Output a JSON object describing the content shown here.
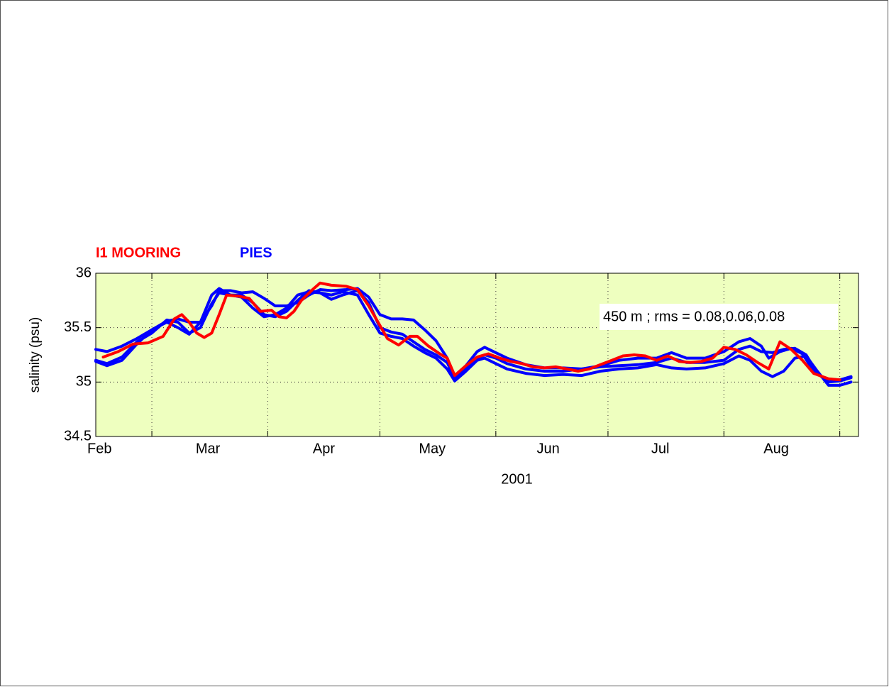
{
  "chart_data": {
    "type": "line",
    "xlabel": "2001",
    "ylabel": "salinity  (psu)",
    "annotation": "450 m ; rms = 0.08,0.06,0.08",
    "legend": [
      {
        "name": "I1 MOORING",
        "color": "#ff0000"
      },
      {
        "name": "PIES",
        "color": "#0000ff"
      }
    ],
    "xlim": [
      45,
      249
    ],
    "ylim": [
      34.5,
      36
    ],
    "xticks": [
      {
        "value": 46,
        "label": "Feb"
      },
      {
        "value": 75,
        "label": "Mar"
      },
      {
        "value": 106,
        "label": "Apr"
      },
      {
        "value": 135,
        "label": "May"
      },
      {
        "value": 166,
        "label": "Jun"
      },
      {
        "value": 196,
        "label": "Jul"
      },
      {
        "value": 227,
        "label": "Aug"
      }
    ],
    "xgrid": [
      60,
      91,
      121,
      152,
      182,
      213,
      244
    ],
    "yticks": [
      34.5,
      35,
      35.5,
      36
    ],
    "grid": true,
    "background": "#eeffbf",
    "series": [
      {
        "color": "#0000ff",
        "x": [
          45,
          48,
          52,
          56,
          60,
          64,
          67,
          70,
          73,
          76,
          78,
          81,
          84,
          87,
          90,
          93,
          96,
          99,
          102,
          105,
          108,
          112,
          115,
          118,
          121,
          124,
          127,
          130,
          133,
          136,
          139,
          141,
          144,
          147,
          149,
          152,
          155,
          160,
          165,
          170,
          175,
          180,
          185,
          190,
          195,
          199,
          203,
          208,
          213,
          217,
          220,
          223,
          225,
          228,
          231,
          234,
          237,
          240,
          244,
          247
        ],
        "values": [
          35.3,
          35.28,
          35.33,
          35.4,
          35.48,
          35.56,
          35.58,
          35.55,
          35.55,
          35.7,
          35.84,
          35.84,
          35.82,
          35.83,
          35.77,
          35.7,
          35.7,
          35.73,
          35.8,
          35.85,
          35.84,
          35.85,
          35.86,
          35.78,
          35.62,
          35.58,
          35.58,
          35.57,
          35.48,
          35.38,
          35.22,
          35.05,
          35.15,
          35.28,
          35.32,
          35.27,
          35.22,
          35.16,
          35.13,
          35.13,
          35.12,
          35.15,
          35.2,
          35.22,
          35.22,
          35.27,
          35.22,
          35.22,
          35.28,
          35.37,
          35.4,
          35.33,
          35.22,
          35.28,
          35.31,
          35.26,
          35.1,
          35.03,
          35.02,
          35.05
        ]
      },
      {
        "color": "#0000ff",
        "x": [
          45,
          48,
          52,
          56,
          60,
          64,
          67,
          70,
          73,
          76,
          78,
          81,
          84,
          87,
          90,
          93,
          96,
          99,
          102,
          105,
          108,
          111,
          115,
          118,
          121,
          124,
          127,
          130,
          133,
          136,
          139,
          141,
          144,
          147,
          149,
          152,
          155,
          160,
          165,
          170,
          175,
          180,
          185,
          190,
          195,
          199,
          203,
          208,
          213,
          217,
          220,
          223,
          226,
          229,
          232,
          235,
          238,
          241,
          244,
          247
        ],
        "values": [
          35.2,
          35.17,
          35.23,
          35.37,
          35.45,
          35.57,
          35.55,
          35.45,
          35.5,
          35.72,
          35.82,
          35.8,
          35.8,
          35.73,
          35.62,
          35.6,
          35.65,
          35.75,
          35.84,
          35.82,
          35.76,
          35.8,
          35.84,
          35.73,
          35.5,
          35.46,
          35.44,
          35.37,
          35.3,
          35.25,
          35.18,
          35.03,
          35.12,
          35.22,
          35.25,
          35.22,
          35.17,
          35.12,
          35.1,
          35.1,
          35.12,
          35.14,
          35.15,
          35.16,
          35.18,
          35.22,
          35.18,
          35.18,
          35.2,
          35.3,
          35.33,
          35.28,
          35.27,
          35.3,
          35.31,
          35.25,
          35.08,
          35.0,
          35.01,
          35.04
        ]
      },
      {
        "color": "#0000ff",
        "x": [
          45,
          48,
          52,
          56,
          60,
          64,
          67,
          70,
          73,
          76,
          78,
          81,
          84,
          87,
          90,
          93,
          96,
          99,
          102,
          105,
          108,
          111,
          115,
          118,
          121,
          124,
          127,
          130,
          133,
          136,
          139,
          141,
          144,
          147,
          149,
          152,
          155,
          160,
          165,
          170,
          175,
          180,
          185,
          190,
          195,
          199,
          203,
          208,
          213,
          217,
          220,
          223,
          226,
          229,
          232,
          235,
          238,
          241,
          244,
          247
        ],
        "values": [
          35.19,
          35.15,
          35.2,
          35.35,
          35.48,
          35.55,
          35.5,
          35.44,
          35.55,
          35.8,
          35.86,
          35.8,
          35.78,
          35.68,
          35.6,
          35.62,
          35.68,
          35.8,
          35.83,
          35.82,
          35.8,
          35.83,
          35.8,
          35.62,
          35.45,
          35.42,
          35.4,
          35.33,
          35.27,
          35.22,
          35.12,
          35.01,
          35.1,
          35.2,
          35.22,
          35.17,
          35.12,
          35.08,
          35.06,
          35.07,
          35.06,
          35.1,
          35.12,
          35.13,
          35.16,
          35.13,
          35.12,
          35.13,
          35.17,
          35.24,
          35.2,
          35.1,
          35.05,
          35.1,
          35.22,
          35.24,
          35.1,
          34.97,
          34.97,
          35.0
        ]
      },
      {
        "color": "#ff0000",
        "x": [
          47,
          51,
          55,
          59,
          63,
          66,
          68,
          70,
          72,
          74,
          76,
          78,
          80,
          83,
          86,
          89,
          92,
          94,
          96,
          98,
          100,
          103,
          105,
          108,
          112,
          115,
          118,
          121,
          123,
          126,
          129,
          131,
          134,
          137,
          139,
          141,
          144,
          147,
          150,
          153,
          156,
          159,
          162,
          165,
          168,
          171,
          174,
          177,
          180,
          183,
          186,
          189,
          192,
          195,
          198,
          201,
          204,
          207,
          210,
          213,
          216,
          219,
          222,
          225,
          228,
          231,
          234,
          237,
          241,
          244
        ],
        "values": [
          35.23,
          35.28,
          35.35,
          35.36,
          35.42,
          35.58,
          35.62,
          35.55,
          35.45,
          35.41,
          35.45,
          35.62,
          35.8,
          35.79,
          35.77,
          35.65,
          35.66,
          35.6,
          35.59,
          35.65,
          35.75,
          35.85,
          35.91,
          35.89,
          35.88,
          35.85,
          35.7,
          35.52,
          35.4,
          35.34,
          35.42,
          35.42,
          35.33,
          35.26,
          35.22,
          35.06,
          35.15,
          35.23,
          35.26,
          35.22,
          35.19,
          35.17,
          35.14,
          35.13,
          35.14,
          35.12,
          35.1,
          35.12,
          35.16,
          35.2,
          35.24,
          35.25,
          35.24,
          35.2,
          35.24,
          35.19,
          35.18,
          35.19,
          35.22,
          35.32,
          35.3,
          35.25,
          35.18,
          35.12,
          35.37,
          35.3,
          35.2,
          35.08,
          35.03,
          35.02
        ]
      }
    ]
  }
}
